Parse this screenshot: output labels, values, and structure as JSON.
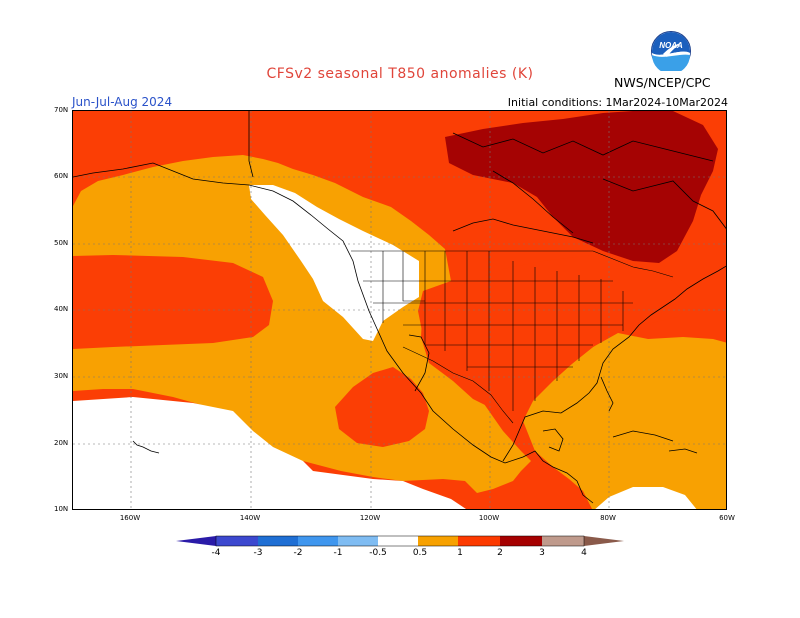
{
  "header": {
    "title": "CFSv2 seasonal T850 anomalies (K)",
    "season": "Jun-Jul-Aug 2024",
    "initial_conditions": "Initial conditions: 1Mar2024-10Mar2024",
    "agency": "NWS/NCEP/CPC",
    "logo_text": "NOAA"
  },
  "axes": {
    "lat_labels": [
      "70N",
      "60N",
      "50N",
      "40N",
      "30N",
      "20N",
      "10N"
    ],
    "lon_labels": [
      "160W",
      "140W",
      "120W",
      "100W",
      "80W",
      "60W"
    ]
  },
  "legend": {
    "labels": [
      "-4",
      "-3",
      "-2",
      "-1",
      "-0.5",
      "0.5",
      "1",
      "2",
      "3",
      "4"
    ],
    "colors": [
      "#2a1ba8",
      "#3c48cf",
      "#1f6fd4",
      "#3f96ee",
      "#7fbcf2",
      "#ffffff",
      "#f7a100",
      "#fc3a00",
      "#a50000",
      "#bf9a8c",
      "#8a5a4a"
    ]
  },
  "map": {
    "fill_colors": {
      "anomaly_0p5_1": "#f8a102",
      "anomaly_1_2": "#fb3e05",
      "anomaly_2_3": "#a50303",
      "neutral": "#ffffff"
    }
  }
}
